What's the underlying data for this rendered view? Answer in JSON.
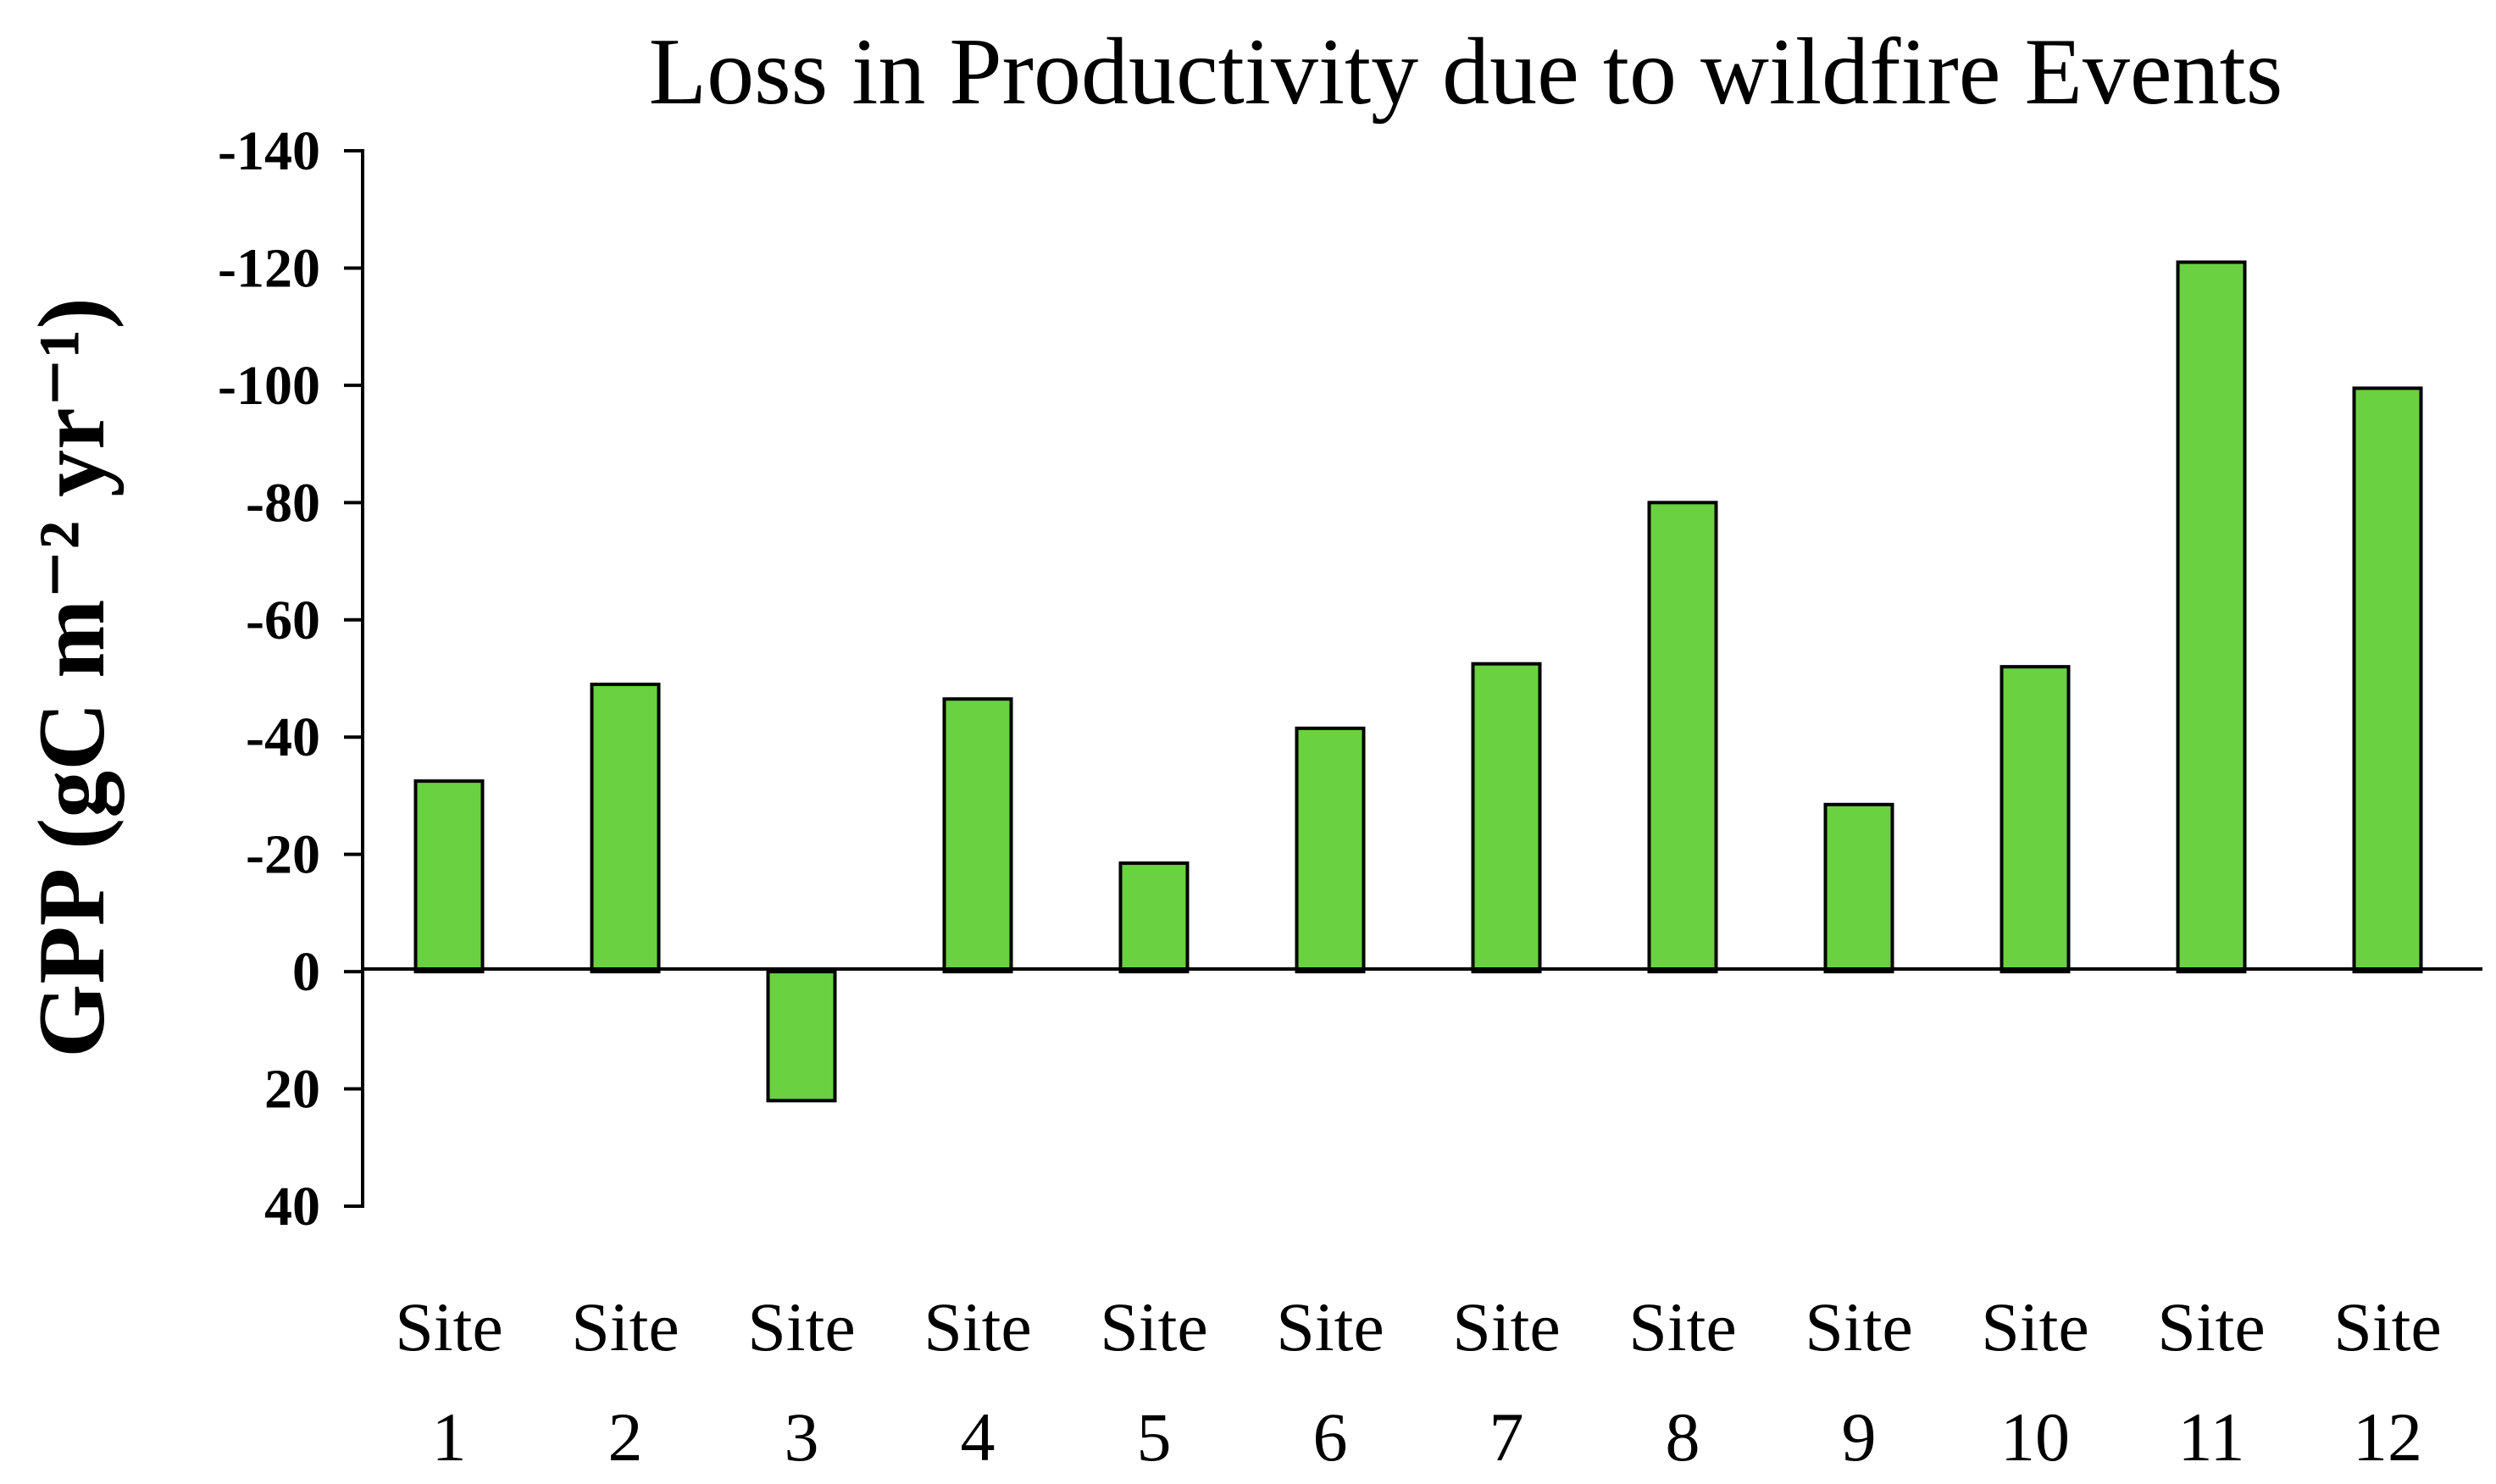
{
  "chart_data": {
    "type": "bar",
    "title": "Loss in Productivity due to wildfire Events",
    "xlabel": "",
    "ylabel": "GPP (gC m⁻² yr⁻¹)",
    "y_inverted": true,
    "ylim": [
      -140,
      40
    ],
    "yticks": [
      -140,
      -120,
      -100,
      -80,
      -60,
      -40,
      -20,
      0,
      20,
      40
    ],
    "ytick_labels": [
      "-140",
      "-120",
      "-100",
      "-80",
      "-60",
      "-40",
      "-20",
      "0",
      "20",
      "40"
    ],
    "categories": [
      [
        "Site",
        "1"
      ],
      [
        "Site",
        "2"
      ],
      [
        "Site",
        "3"
      ],
      [
        "Site",
        "4"
      ],
      [
        "Site",
        "5"
      ],
      [
        "Site",
        "6"
      ],
      [
        "Site",
        "7"
      ],
      [
        "Site",
        "8"
      ],
      [
        "Site",
        "9"
      ],
      [
        "Site",
        "10"
      ],
      [
        "Site",
        "11"
      ],
      [
        "Site",
        "12"
      ]
    ],
    "values": [
      -32.5,
      -49,
      22,
      -46.5,
      -18.5,
      -41.5,
      -52.5,
      -80,
      -28.5,
      -52,
      -121,
      -99.5
    ],
    "bar_color": "#6ad140",
    "bar_edge_color": "#000000",
    "grid": false,
    "legend": "none"
  }
}
